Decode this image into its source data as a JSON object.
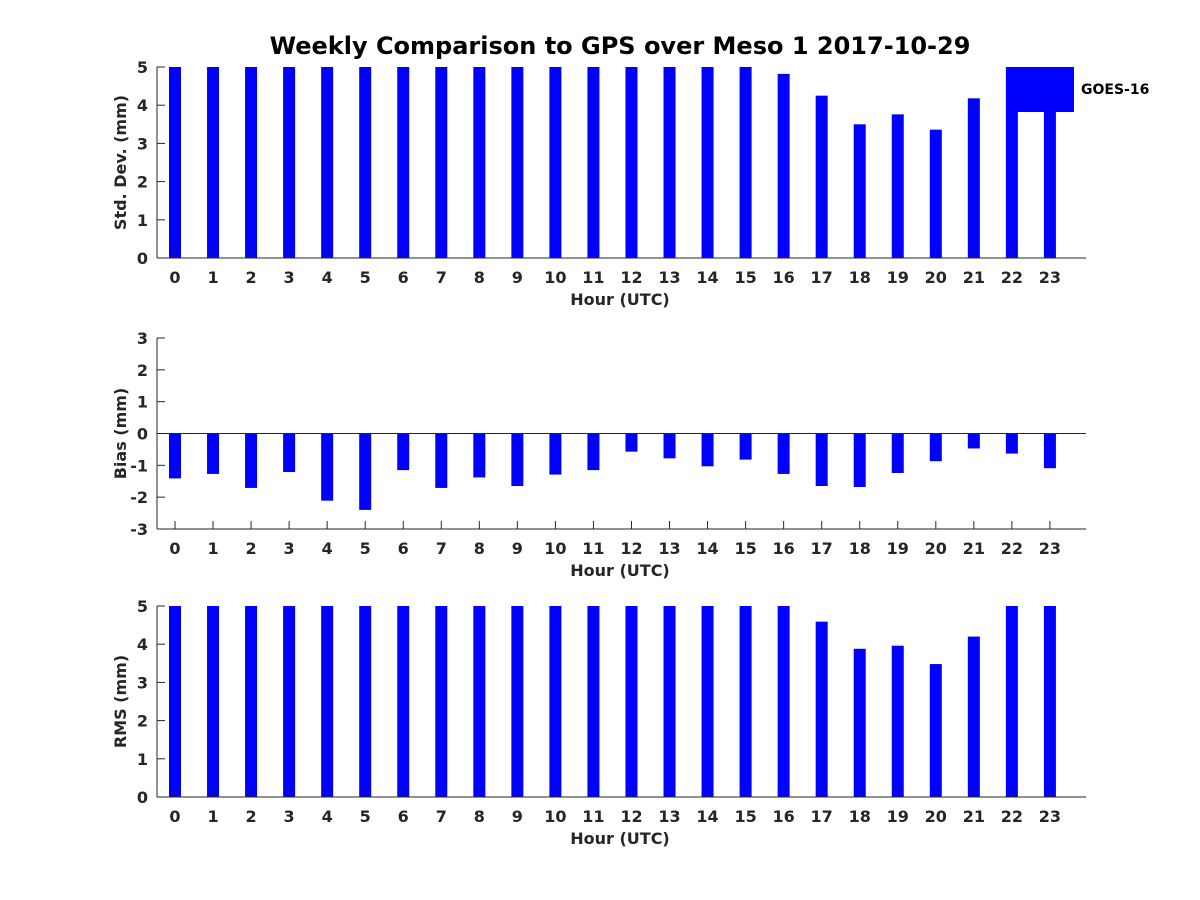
{
  "figure": {
    "title": "Weekly Comparison to GPS over Meso 1 2017-10-29"
  },
  "legend": {
    "label": "GOES-16",
    "color": "#0000ff",
    "placement": "top-right, outside axes"
  },
  "chart_data": [
    {
      "type": "bar",
      "title": "Weekly Comparison to GPS over Meso 1 2017-10-29",
      "xlabel": "Hour (UTC)",
      "ylabel": "Std. Dev. (mm)",
      "ylim": [
        0,
        5
      ],
      "yticks": [
        0,
        1,
        2,
        3,
        4,
        5
      ],
      "categories": [
        "0",
        "1",
        "2",
        "3",
        "4",
        "5",
        "6",
        "7",
        "8",
        "9",
        "10",
        "11",
        "12",
        "13",
        "14",
        "15",
        "16",
        "17",
        "18",
        "19",
        "20",
        "21",
        "22",
        "23"
      ],
      "series": [
        {
          "name": "GOES-16",
          "color": "#0000ff",
          "values": [
            5,
            5,
            5,
            5,
            5,
            5,
            5,
            5,
            5,
            5,
            5,
            5,
            5,
            5,
            5,
            5,
            4.82,
            4.25,
            3.5,
            3.76,
            3.36,
            4.18,
            5,
            5
          ]
        }
      ],
      "grid": false
    },
    {
      "type": "bar",
      "xlabel": "Hour (UTC)",
      "ylabel": "Bias (mm)",
      "ylim": [
        -3,
        3
      ],
      "yticks": [
        -3,
        -2,
        -1,
        0,
        1,
        2,
        3
      ],
      "categories": [
        "0",
        "1",
        "2",
        "3",
        "4",
        "5",
        "6",
        "7",
        "8",
        "9",
        "10",
        "11",
        "12",
        "13",
        "14",
        "15",
        "16",
        "17",
        "18",
        "19",
        "20",
        "21",
        "22",
        "23"
      ],
      "series": [
        {
          "name": "GOES-16",
          "color": "#0000ff",
          "values": [
            -1.41,
            -1.27,
            -1.71,
            -1.21,
            -2.11,
            -2.4,
            -1.15,
            -1.71,
            -1.38,
            -1.65,
            -1.29,
            -1.15,
            -0.57,
            -0.78,
            -1.03,
            -0.82,
            -1.27,
            -1.65,
            -1.68,
            -1.24,
            -0.87,
            -0.47,
            -0.63,
            -1.09
          ]
        }
      ],
      "grid": false
    },
    {
      "type": "bar",
      "xlabel": "Hour (UTC)",
      "ylabel": "RMS (mm)",
      "ylim": [
        0,
        5
      ],
      "yticks": [
        0,
        1,
        2,
        3,
        4,
        5
      ],
      "categories": [
        "0",
        "1",
        "2",
        "3",
        "4",
        "5",
        "6",
        "7",
        "8",
        "9",
        "10",
        "11",
        "12",
        "13",
        "14",
        "15",
        "16",
        "17",
        "18",
        "19",
        "20",
        "21",
        "22",
        "23"
      ],
      "series": [
        {
          "name": "GOES-16",
          "color": "#0000ff",
          "values": [
            5,
            5,
            5,
            5,
            5,
            5,
            5,
            5,
            5,
            5,
            5,
            5,
            5,
            5,
            5,
            5,
            5,
            4.59,
            3.88,
            3.96,
            3.48,
            4.2,
            5,
            5
          ]
        }
      ],
      "grid": false
    }
  ]
}
